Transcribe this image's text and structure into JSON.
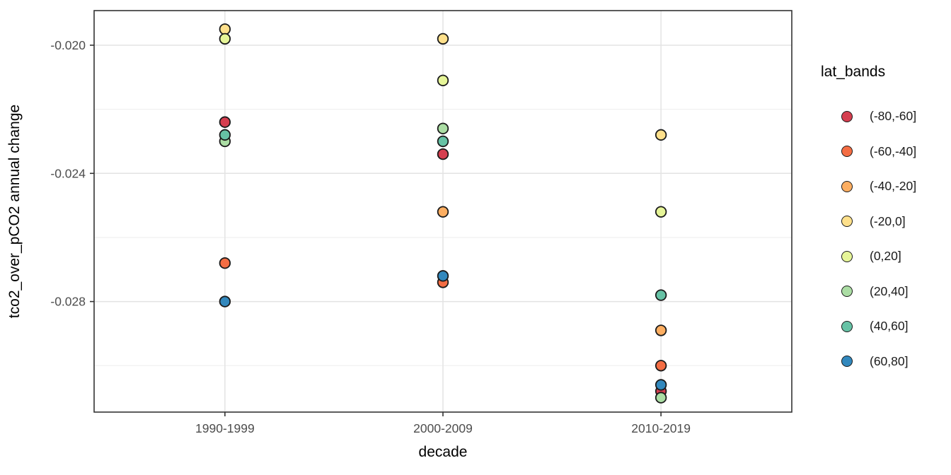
{
  "figure": {
    "background": "#ffffff",
    "panel_border_color": "#333333",
    "grid_major_color": "#e3e3e3",
    "grid_minor_color": "#ededed",
    "tick_color": "#333333",
    "tick_label_color": "#4d4d4d",
    "axis_title_color": "#000000"
  },
  "chart_data": {
    "type": "scatter",
    "title": "",
    "xlabel": "decade",
    "ylabel": "tco2_over_pCO2 annual change",
    "categories": [
      "1990-1999",
      "2000-2009",
      "2010-2019"
    ],
    "y_axis": {
      "tick_values": [
        -0.02,
        -0.024,
        -0.028
      ],
      "tick_labels": [
        "-0.020",
        "-0.024",
        "-0.028"
      ],
      "minor_values": [
        -0.022,
        -0.026,
        -0.03
      ],
      "ylim": [
        -0.03145,
        -0.01892
      ]
    },
    "grid": true,
    "legend_position": "right",
    "legend_title": "lat_bands",
    "series": [
      {
        "name": "(-80,-60]",
        "color": "#d53e4f",
        "values": [
          -0.0224,
          -0.0234,
          -0.0308
        ]
      },
      {
        "name": "(-60,-40]",
        "color": "#f46d43",
        "values": [
          -0.0268,
          -0.0274,
          -0.03
        ]
      },
      {
        "name": "(-40,-20]",
        "color": "#fdae61",
        "values": [
          null,
          -0.0252,
          -0.0289
        ]
      },
      {
        "name": "(-20,0]",
        "color": "#fee08b",
        "values": [
          -0.0195,
          -0.0198,
          -0.0228
        ]
      },
      {
        "name": "(0,20]",
        "color": "#e6f598",
        "values": [
          -0.0198,
          -0.0211,
          -0.0252
        ]
      },
      {
        "name": "(20,40]",
        "color": "#abdda4",
        "values": [
          -0.023,
          -0.0226,
          -0.031
        ]
      },
      {
        "name": "(40,60]",
        "color": "#66c2a5",
        "values": [
          -0.0228,
          -0.023,
          -0.0278
        ]
      },
      {
        "name": "(60,80]",
        "color": "#3288bd",
        "values": [
          -0.028,
          -0.0272,
          -0.0306
        ]
      }
    ]
  }
}
